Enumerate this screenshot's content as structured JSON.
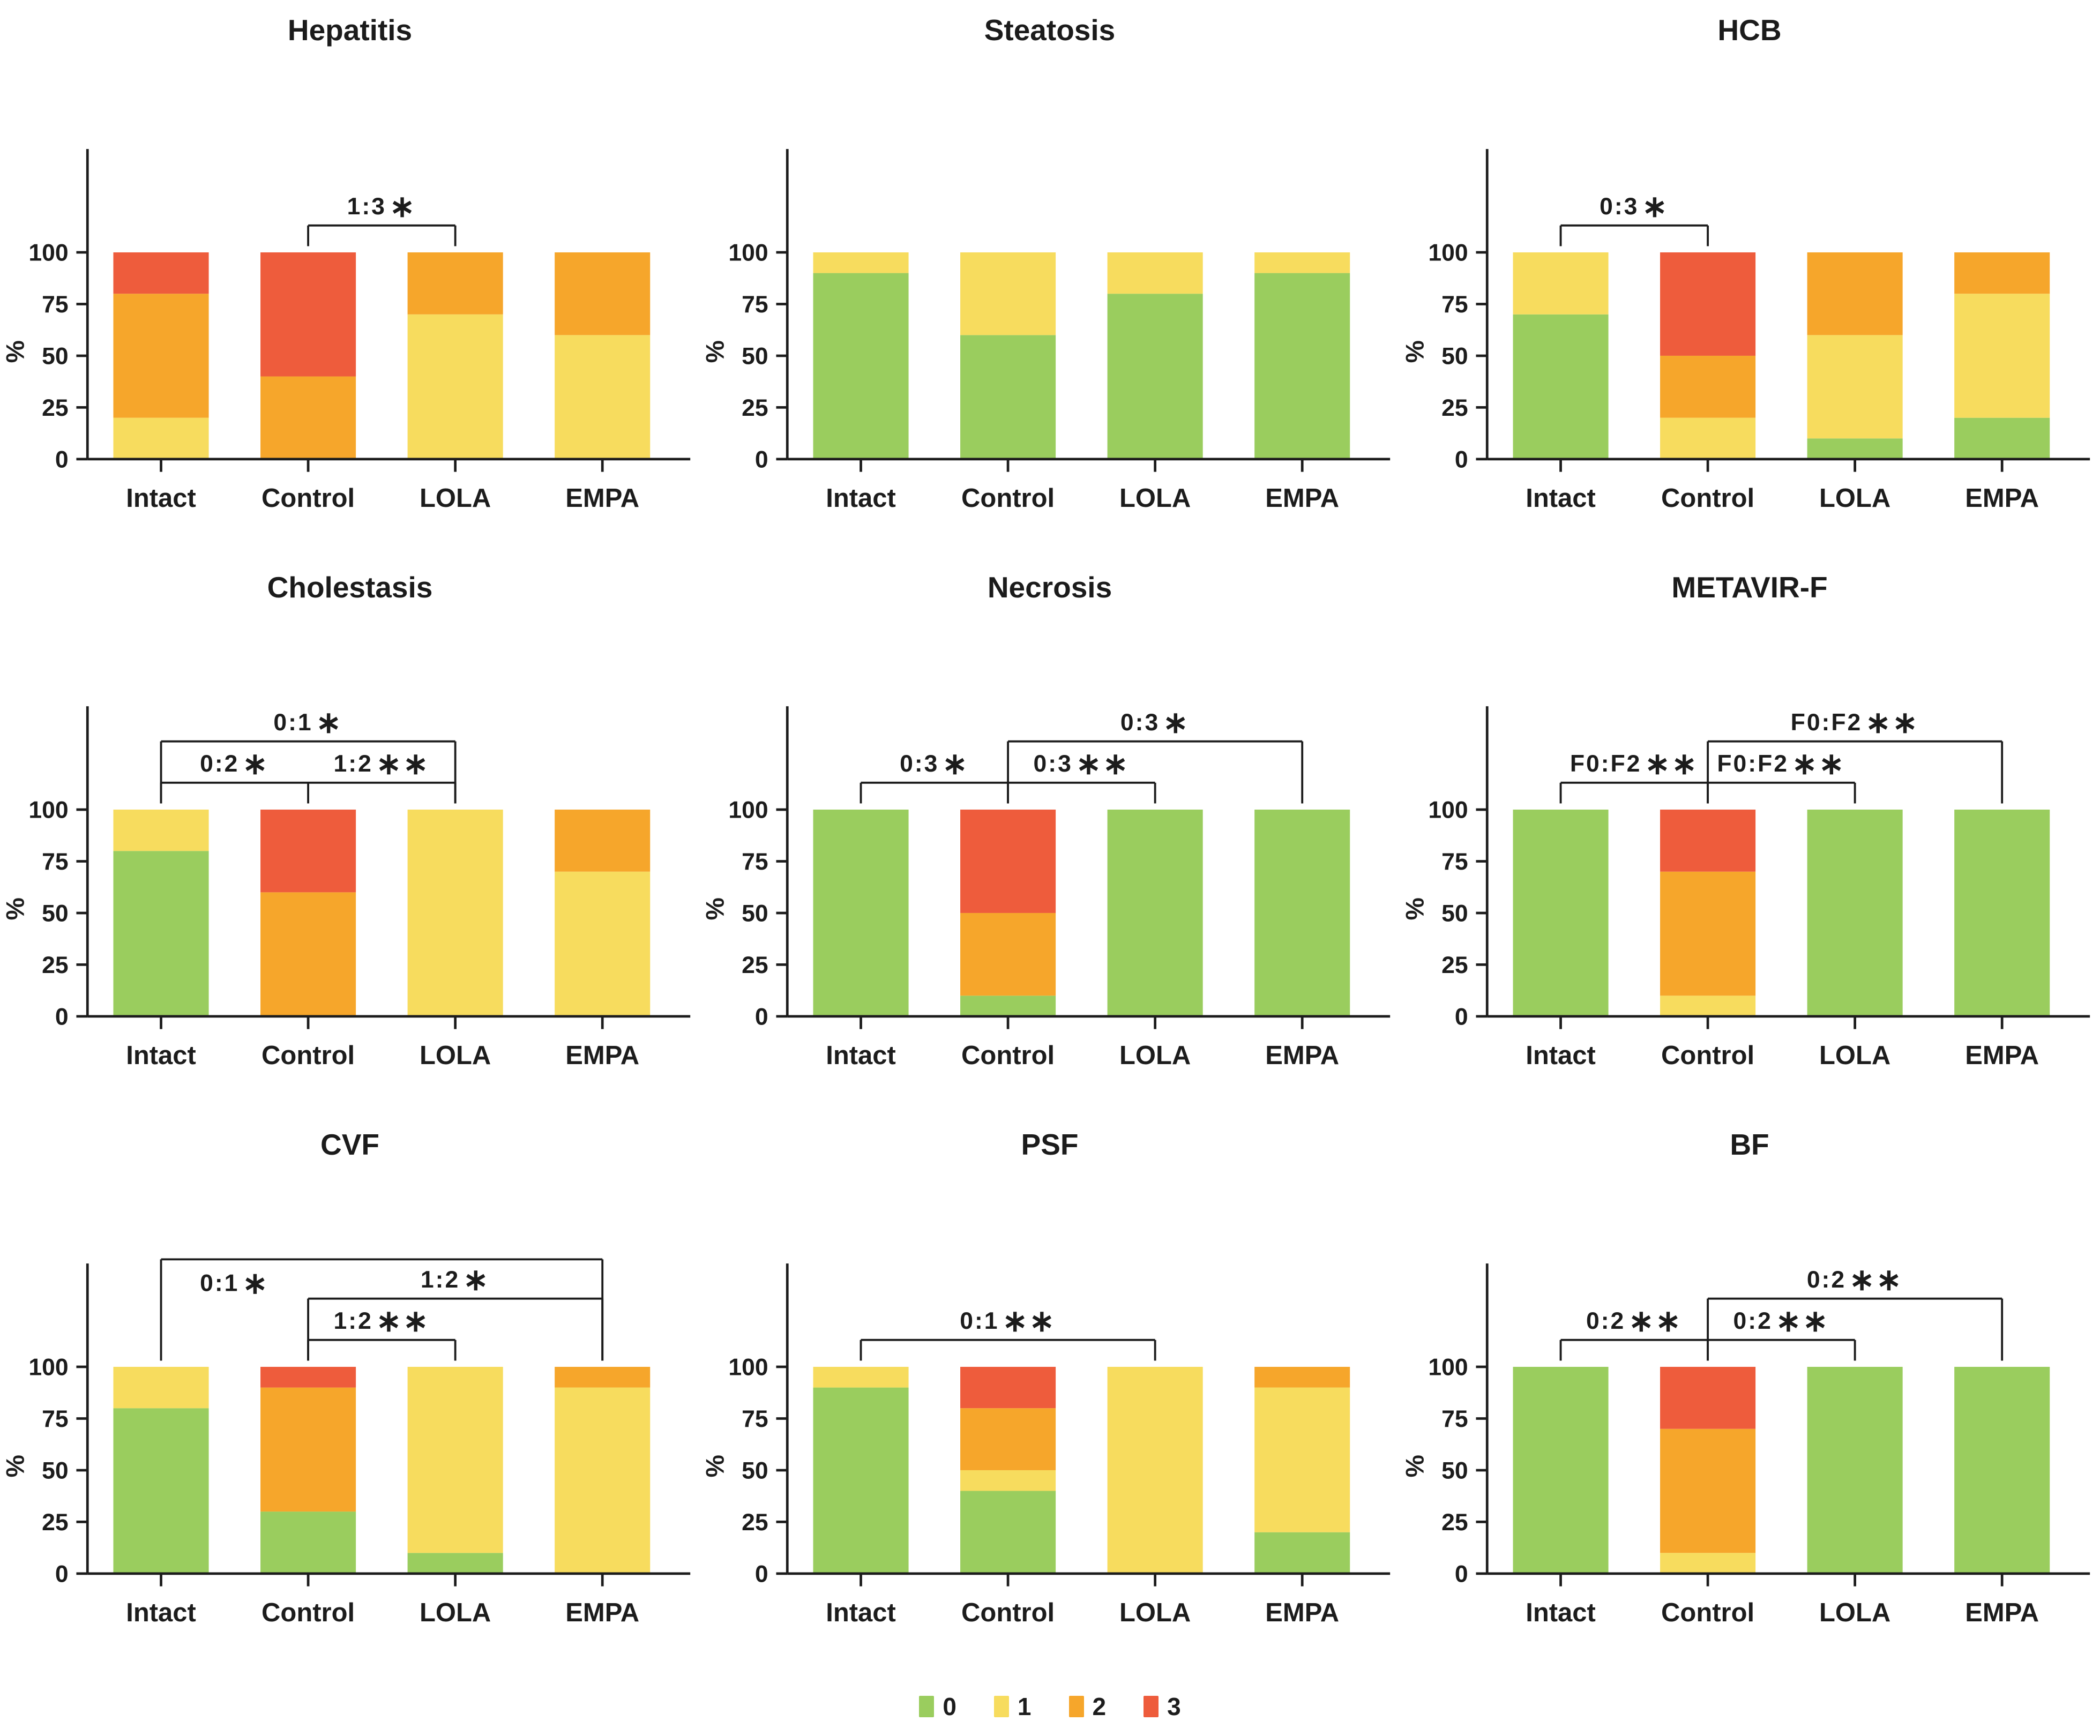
{
  "figure": {
    "background": "#ffffff"
  },
  "score_colors": {
    "0": "#9ACD5E",
    "1": "#F7DC5E",
    "2": "#F6A62B",
    "3": "#EE5C3C"
  },
  "legend": {
    "items": [
      {
        "label": "0",
        "color": "#9ACD5E"
      },
      {
        "label": "1",
        "color": "#F7DC5E"
      },
      {
        "label": "2",
        "color": "#F6A62B"
      },
      {
        "label": "3",
        "color": "#EE5C3C"
      }
    ]
  },
  "chart_data": [
    {
      "type": "bar",
      "stacked": true,
      "percent": true,
      "title": "Hepatitis",
      "categories": [
        "Intact",
        "Control",
        "LOLA",
        "EMPA"
      ],
      "ylabel": "%",
      "yticks": [
        0,
        25,
        50,
        75,
        100
      ],
      "ylim": [
        0,
        100
      ],
      "series": [
        {
          "name": "0",
          "color": "#9ACD5E",
          "values": [
            0,
            0,
            0,
            0
          ]
        },
        {
          "name": "1",
          "color": "#F7DC5E",
          "values": [
            20,
            0,
            70,
            60
          ]
        },
        {
          "name": "2",
          "color": "#F6A62B",
          "values": [
            60,
            40,
            30,
            40
          ]
        },
        {
          "name": "3",
          "color": "#EE5C3C",
          "values": [
            20,
            60,
            0,
            0
          ]
        }
      ],
      "significance_brackets": [
        {
          "from": "Control",
          "to": "LOLA",
          "level": 1,
          "label": "1:3*"
        }
      ]
    },
    {
      "type": "bar",
      "stacked": true,
      "percent": true,
      "title": "Steatosis",
      "categories": [
        "Intact",
        "Control",
        "LOLA",
        "EMPA"
      ],
      "ylabel": "%",
      "yticks": [
        0,
        25,
        50,
        75,
        100
      ],
      "ylim": [
        0,
        100
      ],
      "series": [
        {
          "name": "0",
          "color": "#9ACD5E",
          "values": [
            90,
            60,
            80,
            90
          ]
        },
        {
          "name": "1",
          "color": "#F7DC5E",
          "values": [
            10,
            40,
            20,
            10
          ]
        },
        {
          "name": "2",
          "color": "#F6A62B",
          "values": [
            0,
            0,
            0,
            0
          ]
        },
        {
          "name": "3",
          "color": "#EE5C3C",
          "values": [
            0,
            0,
            0,
            0
          ]
        }
      ],
      "significance_brackets": []
    },
    {
      "type": "bar",
      "stacked": true,
      "percent": true,
      "title": "HCB",
      "categories": [
        "Intact",
        "Control",
        "LOLA",
        "EMPA"
      ],
      "ylabel": "%",
      "yticks": [
        0,
        25,
        50,
        75,
        100
      ],
      "ylim": [
        0,
        100
      ],
      "series": [
        {
          "name": "0",
          "color": "#9ACD5E",
          "values": [
            70,
            0,
            10,
            20
          ]
        },
        {
          "name": "1",
          "color": "#F7DC5E",
          "values": [
            30,
            20,
            50,
            60
          ]
        },
        {
          "name": "2",
          "color": "#F6A62B",
          "values": [
            0,
            30,
            40,
            20
          ]
        },
        {
          "name": "3",
          "color": "#EE5C3C",
          "values": [
            0,
            50,
            0,
            0
          ]
        }
      ],
      "significance_brackets": [
        {
          "from": "Intact",
          "to": "Control",
          "level": 1,
          "label": "0:3*"
        }
      ]
    },
    {
      "type": "bar",
      "stacked": true,
      "percent": true,
      "title": "Cholestasis",
      "categories": [
        "Intact",
        "Control",
        "LOLA",
        "EMPA"
      ],
      "ylabel": "%",
      "yticks": [
        0,
        25,
        50,
        75,
        100
      ],
      "ylim": [
        0,
        100
      ],
      "series": [
        {
          "name": "0",
          "color": "#9ACD5E",
          "values": [
            80,
            0,
            0,
            0
          ]
        },
        {
          "name": "1",
          "color": "#F7DC5E",
          "values": [
            20,
            0,
            100,
            70
          ]
        },
        {
          "name": "2",
          "color": "#F6A62B",
          "values": [
            0,
            60,
            0,
            30
          ]
        },
        {
          "name": "3",
          "color": "#EE5C3C",
          "values": [
            0,
            40,
            0,
            0
          ]
        }
      ],
      "significance_brackets": [
        {
          "from": "Intact",
          "to": "LOLA",
          "via": "Control",
          "level": 1,
          "labels": [
            "0:2*",
            "1:2**"
          ]
        },
        {
          "from": "Intact",
          "to": "LOLA",
          "level": 2,
          "label": "0:1*"
        }
      ]
    },
    {
      "type": "bar",
      "stacked": true,
      "percent": true,
      "title": "Necrosis",
      "categories": [
        "Intact",
        "Control",
        "LOLA",
        "EMPA"
      ],
      "ylabel": "%",
      "yticks": [
        0,
        25,
        50,
        75,
        100
      ],
      "ylim": [
        0,
        100
      ],
      "series": [
        {
          "name": "0",
          "color": "#9ACD5E",
          "values": [
            100,
            10,
            100,
            100
          ]
        },
        {
          "name": "1",
          "color": "#F7DC5E",
          "values": [
            0,
            0,
            0,
            0
          ]
        },
        {
          "name": "2",
          "color": "#F6A62B",
          "values": [
            0,
            40,
            0,
            0
          ]
        },
        {
          "name": "3",
          "color": "#EE5C3C",
          "values": [
            0,
            50,
            0,
            0
          ]
        }
      ],
      "significance_brackets": [
        {
          "from": "Intact",
          "to": "LOLA",
          "via": "Control",
          "level": 1,
          "labels": [
            "0:3*",
            "0:3**"
          ]
        },
        {
          "from": "Control",
          "to": "EMPA",
          "level": 2,
          "label": "0:3*"
        }
      ]
    },
    {
      "type": "bar",
      "stacked": true,
      "percent": true,
      "title": "METAVIR-F",
      "categories": [
        "Intact",
        "Control",
        "LOLA",
        "EMPA"
      ],
      "ylabel": "%",
      "yticks": [
        0,
        25,
        50,
        75,
        100
      ],
      "ylim": [
        0,
        100
      ],
      "series": [
        {
          "name": "0",
          "color": "#9ACD5E",
          "values": [
            100,
            0,
            100,
            100
          ]
        },
        {
          "name": "1",
          "color": "#F7DC5E",
          "values": [
            0,
            10,
            0,
            0
          ]
        },
        {
          "name": "2",
          "color": "#F6A62B",
          "values": [
            0,
            60,
            0,
            0
          ]
        },
        {
          "name": "3",
          "color": "#EE5C3C",
          "values": [
            0,
            30,
            0,
            0
          ]
        }
      ],
      "significance_brackets": [
        {
          "from": "Intact",
          "to": "LOLA",
          "via": "Control",
          "level": 1,
          "labels": [
            "F0:F2**",
            "F0:F2**"
          ]
        },
        {
          "from": "Control",
          "to": "EMPA",
          "level": 2,
          "label": "F0:F2**"
        }
      ]
    },
    {
      "type": "bar",
      "stacked": true,
      "percent": true,
      "title": "CVF",
      "categories": [
        "Intact",
        "Control",
        "LOLA",
        "EMPA"
      ],
      "ylabel": "%",
      "yticks": [
        0,
        25,
        50,
        75,
        100
      ],
      "ylim": [
        0,
        100
      ],
      "series": [
        {
          "name": "0",
          "color": "#9ACD5E",
          "values": [
            80,
            30,
            10,
            0
          ]
        },
        {
          "name": "1",
          "color": "#F7DC5E",
          "values": [
            20,
            0,
            90,
            90
          ]
        },
        {
          "name": "2",
          "color": "#F6A62B",
          "values": [
            0,
            60,
            0,
            10
          ]
        },
        {
          "name": "3",
          "color": "#EE5C3C",
          "values": [
            0,
            10,
            0,
            0
          ]
        }
      ],
      "significance_brackets": [
        {
          "from": "Control",
          "to": "LOLA",
          "level": 1,
          "label": "1:2**"
        },
        {
          "from": "Control",
          "to": "EMPA",
          "level": 2,
          "label": "1:2*"
        },
        {
          "from": "Intact",
          "to": "EMPA",
          "level": 3,
          "label": "0:1*",
          "label_position": "below-left"
        }
      ]
    },
    {
      "type": "bar",
      "stacked": true,
      "percent": true,
      "title": "PSF",
      "categories": [
        "Intact",
        "Control",
        "LOLA",
        "EMPA"
      ],
      "ylabel": "%",
      "yticks": [
        0,
        25,
        50,
        75,
        100
      ],
      "ylim": [
        0,
        100
      ],
      "series": [
        {
          "name": "0",
          "color": "#9ACD5E",
          "values": [
            90,
            40,
            0,
            20
          ]
        },
        {
          "name": "1",
          "color": "#F7DC5E",
          "values": [
            10,
            10,
            100,
            70
          ]
        },
        {
          "name": "2",
          "color": "#F6A62B",
          "values": [
            0,
            30,
            0,
            10
          ]
        },
        {
          "name": "3",
          "color": "#EE5C3C",
          "values": [
            0,
            20,
            0,
            0
          ]
        }
      ],
      "significance_brackets": [
        {
          "from": "Intact",
          "to": "LOLA",
          "level": 1,
          "label": "0:1**"
        }
      ]
    },
    {
      "type": "bar",
      "stacked": true,
      "percent": true,
      "title": "BF",
      "categories": [
        "Intact",
        "Control",
        "LOLA",
        "EMPA"
      ],
      "ylabel": "%",
      "yticks": [
        0,
        25,
        50,
        75,
        100
      ],
      "ylim": [
        0,
        100
      ],
      "series": [
        {
          "name": "0",
          "color": "#9ACD5E",
          "values": [
            100,
            0,
            100,
            100
          ]
        },
        {
          "name": "1",
          "color": "#F7DC5E",
          "values": [
            0,
            10,
            0,
            0
          ]
        },
        {
          "name": "2",
          "color": "#F6A62B",
          "values": [
            0,
            60,
            0,
            0
          ]
        },
        {
          "name": "3",
          "color": "#EE5C3C",
          "values": [
            0,
            30,
            0,
            0
          ]
        }
      ],
      "significance_brackets": [
        {
          "from": "Intact",
          "to": "LOLA",
          "via": "Control",
          "level": 1,
          "labels": [
            "0:2**",
            "0:2**"
          ]
        },
        {
          "from": "Control",
          "to": "EMPA",
          "level": 2,
          "label": "0:2**"
        }
      ]
    }
  ]
}
